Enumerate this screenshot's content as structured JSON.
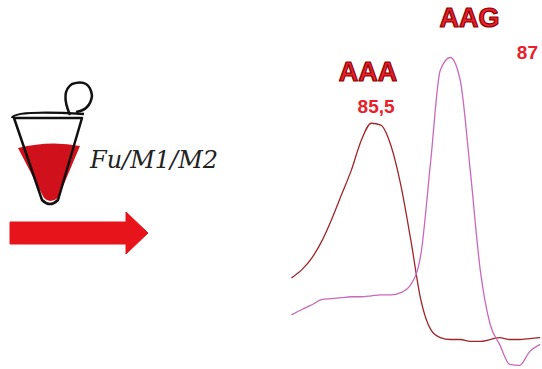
{
  "chart_data": {
    "type": "line",
    "x": [
      83.73,
      83.94,
      84.15,
      84.35,
      84.56,
      84.77,
      84.98,
      85.19,
      85.4,
      85.6,
      85.81,
      86.02,
      86.23,
      86.44,
      86.65,
      86.85,
      87.06,
      87.27,
      87.48,
      87.69,
      87.9,
      88.1,
      88.31,
      88.52,
      88.73,
      88.94
    ],
    "series": [
      {
        "name": "AAA",
        "color": "#a0262a",
        "values": [
          28.8,
          31.3,
          35,
          40,
          46.9,
          54.7,
          62.5,
          71.9,
          77.2,
          76.6,
          70.3,
          57.8,
          40.6,
          21.9,
          12.5,
          10,
          9.4,
          9.4,
          8.8,
          8.8,
          9.4,
          10,
          9.4,
          9.4,
          9.7,
          10
        ]
      },
      {
        "name": "AAG",
        "color": "#c86ab8",
        "values": [
          17.2,
          18.8,
          20.3,
          21.9,
          22.2,
          22.5,
          22.8,
          22.8,
          23.1,
          23.4,
          23.4,
          24.1,
          26.6,
          35.9,
          65.6,
          93.8,
          97.8,
          90.6,
          62.5,
          31.3,
          14.1,
          7.8,
          1.6,
          1.3,
          5.6,
          7.8
        ]
      }
    ],
    "annotations": [
      {
        "text": "AAA",
        "x": 85.5,
        "label": "85,5"
      },
      {
        "text": "AAG",
        "x": 87,
        "label": "87"
      }
    ],
    "xlim": [
      83.7,
      89
    ],
    "ylim": [
      0,
      100
    ],
    "xticks": [],
    "yticks": [],
    "tick_labels": false,
    "grid": false
  },
  "diagram": {
    "tube_label": "Fu/M1/M2"
  }
}
